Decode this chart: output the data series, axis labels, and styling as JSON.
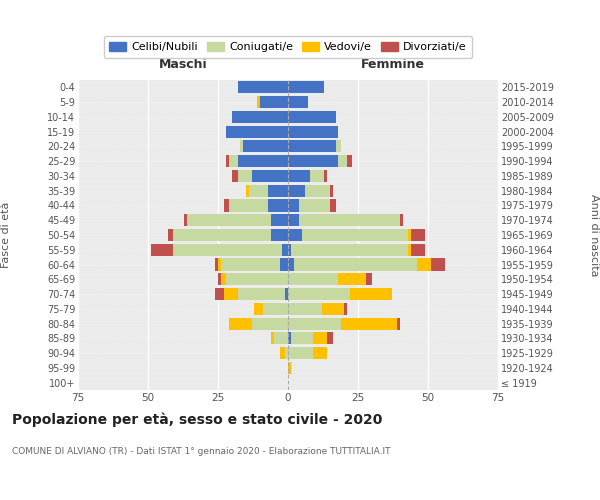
{
  "age_groups": [
    "100+",
    "95-99",
    "90-94",
    "85-89",
    "80-84",
    "75-79",
    "70-74",
    "65-69",
    "60-64",
    "55-59",
    "50-54",
    "45-49",
    "40-44",
    "35-39",
    "30-34",
    "25-29",
    "20-24",
    "15-19",
    "10-14",
    "5-9",
    "0-4"
  ],
  "birth_years": [
    "≤ 1919",
    "1920-1924",
    "1925-1929",
    "1930-1934",
    "1935-1939",
    "1940-1944",
    "1945-1949",
    "1950-1954",
    "1955-1959",
    "1960-1964",
    "1965-1969",
    "1970-1974",
    "1975-1979",
    "1980-1984",
    "1985-1989",
    "1990-1994",
    "1995-1999",
    "2000-2004",
    "2005-2009",
    "2010-2014",
    "2015-2019"
  ],
  "male": {
    "celibi": [
      0,
      0,
      0,
      0,
      0,
      0,
      1,
      0,
      3,
      2,
      6,
      6,
      7,
      7,
      13,
      18,
      16,
      22,
      20,
      10,
      18
    ],
    "coniugati": [
      0,
      0,
      1,
      5,
      13,
      9,
      17,
      22,
      21,
      39,
      35,
      30,
      14,
      7,
      5,
      3,
      1,
      0,
      0,
      0,
      0
    ],
    "vedovi": [
      0,
      0,
      2,
      1,
      8,
      3,
      5,
      2,
      1,
      0,
      0,
      0,
      0,
      1,
      0,
      0,
      0,
      0,
      0,
      1,
      0
    ],
    "divorziati": [
      0,
      0,
      0,
      0,
      0,
      0,
      3,
      1,
      1,
      8,
      2,
      1,
      2,
      0,
      2,
      1,
      0,
      0,
      0,
      0,
      0
    ]
  },
  "female": {
    "nubili": [
      0,
      0,
      0,
      1,
      0,
      0,
      0,
      0,
      2,
      1,
      5,
      4,
      4,
      6,
      8,
      18,
      17,
      18,
      17,
      7,
      13
    ],
    "coniugate": [
      0,
      0,
      9,
      8,
      19,
      12,
      22,
      18,
      44,
      42,
      38,
      36,
      11,
      9,
      5,
      3,
      2,
      0,
      0,
      0,
      0
    ],
    "vedove": [
      0,
      1,
      5,
      5,
      20,
      8,
      15,
      10,
      5,
      1,
      1,
      0,
      0,
      0,
      0,
      0,
      0,
      0,
      0,
      0,
      0
    ],
    "divorziate": [
      0,
      0,
      0,
      2,
      1,
      1,
      0,
      2,
      5,
      5,
      5,
      1,
      2,
      1,
      1,
      2,
      0,
      0,
      0,
      0,
      0
    ]
  },
  "colors": {
    "celibi": "#4472c4",
    "coniugati": "#c5d9a0",
    "vedovi": "#ffc000",
    "divorziati": "#c0504d"
  },
  "xlim": 75,
  "title": "Popolazione per età, sesso e stato civile - 2020",
  "subtitle": "COMUNE DI ALVIANO (TR) - Dati ISTAT 1° gennaio 2020 - Elaborazione TUTTITALIA.IT",
  "xlabel_left": "Maschi",
  "xlabel_right": "Femmine",
  "ylabel_left": "Fasce di età",
  "ylabel_right": "Anni di nascita",
  "bg_color": "#ebebeb",
  "grid_color": "#ffffff"
}
